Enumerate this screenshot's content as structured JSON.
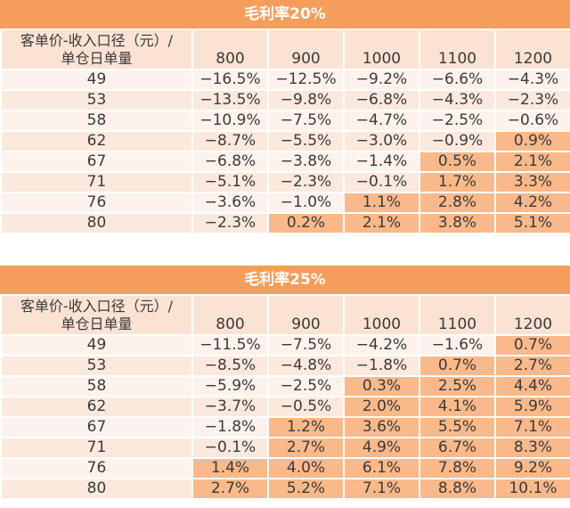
{
  "chart_data": [
    {
      "type": "table",
      "title": "毛利率20%",
      "corner_label": [
        "客单价-收入口径（元）/",
        "单仓日单量"
      ],
      "columns": [
        "800",
        "900",
        "1000",
        "1100",
        "1200"
      ],
      "rows": [
        {
          "label": "49",
          "cells": [
            "−16.5%",
            "−12.5%",
            "−9.2%",
            "−6.6%",
            "−4.3%"
          ]
        },
        {
          "label": "53",
          "cells": [
            "−13.5%",
            "−9.8%",
            "−6.8%",
            "−4.3%",
            "−2.3%"
          ]
        },
        {
          "label": "58",
          "cells": [
            "−10.9%",
            "−7.5%",
            "−4.7%",
            "−2.5%",
            "−0.6%"
          ]
        },
        {
          "label": "62",
          "cells": [
            "−8.7%",
            "−5.5%",
            "−3.0%",
            "−0.9%",
            "0.9%"
          ]
        },
        {
          "label": "67",
          "cells": [
            "−6.8%",
            "−3.8%",
            "−1.4%",
            "0.5%",
            "2.1%"
          ]
        },
        {
          "label": "71",
          "cells": [
            "−5.1%",
            "−2.3%",
            "−0.1%",
            "1.7%",
            "3.3%"
          ]
        },
        {
          "label": "76",
          "cells": [
            "−3.6%",
            "−1.0%",
            "1.1%",
            "2.8%",
            "4.2%"
          ]
        },
        {
          "label": "80",
          "cells": [
            "−2.3%",
            "0.2%",
            "2.1%",
            "3.8%",
            "5.1%"
          ]
        }
      ]
    },
    {
      "type": "table",
      "title": "毛利率25%",
      "corner_label": [
        "客单价-收入口径（元）/",
        "单仓日单量"
      ],
      "columns": [
        "800",
        "900",
        "1000",
        "1100",
        "1200"
      ],
      "rows": [
        {
          "label": "49",
          "cells": [
            "−11.5%",
            "−7.5%",
            "−4.2%",
            "−1.6%",
            "0.7%"
          ]
        },
        {
          "label": "53",
          "cells": [
            "−8.5%",
            "−4.8%",
            "−1.8%",
            "0.7%",
            "2.7%"
          ]
        },
        {
          "label": "58",
          "cells": [
            "−5.9%",
            "−2.5%",
            "0.3%",
            "2.5%",
            "4.4%"
          ]
        },
        {
          "label": "62",
          "cells": [
            "−3.7%",
            "−0.5%",
            "2.0%",
            "4.1%",
            "5.9%"
          ]
        },
        {
          "label": "67",
          "cells": [
            "−1.8%",
            "1.2%",
            "3.6%",
            "5.5%",
            "7.1%"
          ]
        },
        {
          "label": "71",
          "cells": [
            "−0.1%",
            "2.7%",
            "4.9%",
            "6.7%",
            "8.3%"
          ]
        },
        {
          "label": "76",
          "cells": [
            "1.4%",
            "4.0%",
            "6.1%",
            "7.8%",
            "9.2%"
          ]
        },
        {
          "label": "80",
          "cells": [
            "2.7%",
            "5.2%",
            "7.1%",
            "8.8%",
            "10.1%"
          ]
        }
      ]
    }
  ],
  "colors": {
    "title_bg": "#f59e5b",
    "title_text": "#ffffff",
    "positive_cell": "#f9b98a",
    "row_light": "#fdf3ec",
    "row_dark": "#fce9dd",
    "header_bg": "#fbe3d3"
  }
}
